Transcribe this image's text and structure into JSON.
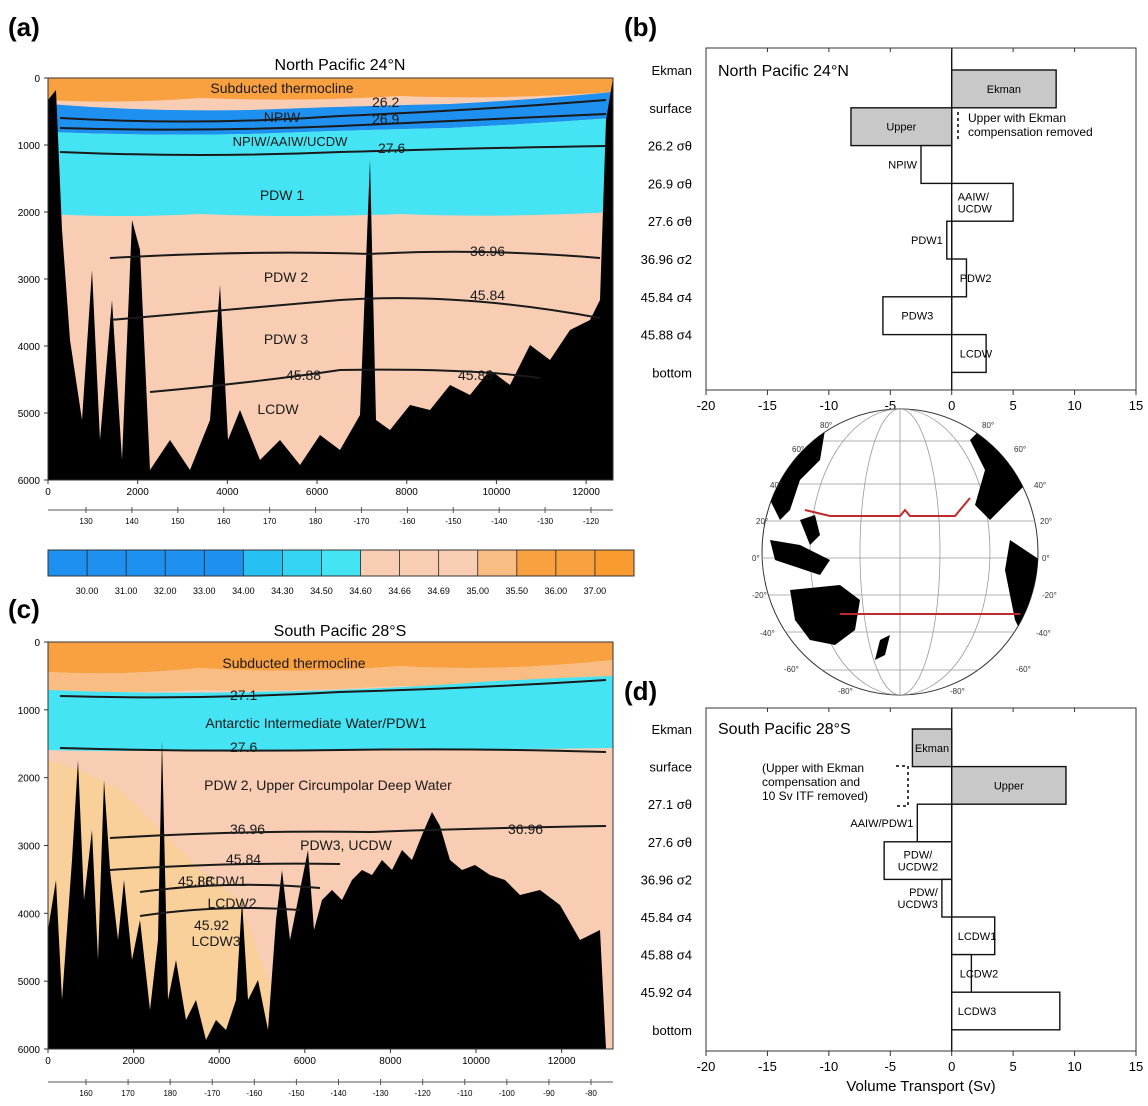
{
  "panels": {
    "a": {
      "label": "(a)",
      "title": "North Pacific 24°N",
      "y_ticks": [
        "0",
        "1000",
        "2000",
        "3000",
        "4000",
        "5000",
        "6000"
      ],
      "x_ticks": [
        "0",
        "2000",
        "4000",
        "6000",
        "8000",
        "10000",
        "12000"
      ],
      "lon_ticks": [
        "130",
        "140",
        "150",
        "160",
        "170",
        "180",
        "-170",
        "-160",
        "-150",
        "-140",
        "-130",
        "-120"
      ],
      "water_labels": [
        "Subducted thermocline",
        "NPIW",
        "NPIW/AAIW/UCDW",
        "PDW 1",
        "PDW 2",
        "PDW 3",
        "LCDW"
      ],
      "contour_labels": [
        "26.2",
        "26.9",
        "27.6",
        "36.96",
        "45.84",
        "45.88",
        "45.88"
      ]
    },
    "b": {
      "label": "(b)",
      "title": "North Pacific 24°N",
      "note": "Upper with Ekman compensation removed"
    },
    "c": {
      "label": "(c)",
      "title": "South Pacific 28°S",
      "y_ticks": [
        "0",
        "1000",
        "2000",
        "3000",
        "4000",
        "5000",
        "6000"
      ],
      "x_ticks": [
        "0",
        "2000",
        "4000",
        "6000",
        "8000",
        "10000",
        "12000"
      ],
      "lon_ticks": [
        "160",
        "170",
        "180",
        "-170",
        "-160",
        "-150",
        "-140",
        "-130",
        "-120",
        "-110",
        "-100",
        "-90",
        "-80"
      ],
      "water_labels": [
        "Subducted thermocline",
        "Antarctic Intermediate Water/PDW1",
        "PDW 2, Upper Circumpolar Deep Water",
        "PDW3, UCDW",
        "LCDW1",
        "LCDW2",
        "LCDW3"
      ],
      "contour_labels": [
        "27.1",
        "27.6",
        "36.96",
        "36.96",
        "45.84",
        "45.88",
        "45.92"
      ]
    },
    "d": {
      "label": "(d)",
      "title": "South Pacific 28°S",
      "note": "(Upper with Ekman compensation and 10 Sv ITF removed)"
    }
  },
  "colorbar": {
    "ticks": [
      "30.00",
      "31.00",
      "32.00",
      "33.00",
      "34.00",
      "34.30",
      "34.50",
      "34.60",
      "34.66",
      "34.69",
      "35.00",
      "35.50",
      "36.00",
      "37.00"
    ],
    "colors": [
      "#1e90f0",
      "#1e90f0",
      "#1e90f0",
      "#1e90f0",
      "#1e90f0",
      "#27c0f2",
      "#33d4f4",
      "#44e4f4",
      "#f8cdb4",
      "#f8cdb4",
      "#f8cdb4",
      "#f9bd84",
      "#f9a040",
      "#f9a040",
      "#f99b2e"
    ]
  },
  "map": {
    "lat_labels": [
      "80°",
      "60°",
      "40°",
      "20°",
      "0°",
      "-20°",
      "-40°",
      "-60°",
      "-80°"
    ]
  },
  "chart_data": [
    {
      "type": "bar",
      "panel": "b",
      "title": "North Pacific 24°N",
      "xlabel": "",
      "xlim": [
        -20,
        15
      ],
      "xticks": [
        -20,
        -15,
        -10,
        -5,
        0,
        5,
        10,
        15
      ],
      "levels": [
        "Ekman",
        "surface",
        "26.2 σθ",
        "26.9 σθ",
        "27.6 σθ",
        "36.96 σ2",
        "45.84 σ4",
        "45.88 σ4",
        "bottom"
      ],
      "bars": [
        {
          "label": "Ekman",
          "value": 8.5,
          "shaded": true
        },
        {
          "label": "Upper",
          "value": -8.2,
          "shaded": true
        },
        {
          "label": "NPIW",
          "value": -2.5,
          "shaded": false
        },
        {
          "label": "AAIW/\nUCDW",
          "value": 5.0,
          "shaded": false
        },
        {
          "label": "PDW1",
          "value": -0.4,
          "shaded": false
        },
        {
          "label": "PDW2",
          "value": 1.2,
          "shaded": false
        },
        {
          "label": "PDW3",
          "value": -5.6,
          "shaded": false
        },
        {
          "label": "LCDW",
          "value": 2.8,
          "shaded": false
        }
      ]
    },
    {
      "type": "bar",
      "panel": "d",
      "title": "South Pacific 28°S",
      "xlabel": "Volume Transport (Sv)",
      "xlim": [
        -20,
        15
      ],
      "xticks": [
        -20,
        -15,
        -10,
        -5,
        0,
        5,
        10,
        15
      ],
      "levels": [
        "Ekman",
        "surface",
        "27.1 σθ",
        "27.6 σθ",
        "36.96 σ2",
        "45.84 σ4",
        "45.88 σ4",
        "45.92 σ4",
        "bottom"
      ],
      "bars": [
        {
          "label": "Ekman",
          "value": -3.2,
          "shaded": true
        },
        {
          "label": "Upper",
          "value": 9.3,
          "shaded": true
        },
        {
          "label": "AAIW/PDW1",
          "value": -2.8,
          "shaded": false
        },
        {
          "label": "PDW/\nUCDW2",
          "value": -5.5,
          "shaded": false
        },
        {
          "label": "PDW/\nUCDW3",
          "value": -0.8,
          "shaded": false
        },
        {
          "label": "LCDW1",
          "value": 3.5,
          "shaded": false
        },
        {
          "label": "LCDW2",
          "value": 1.6,
          "shaded": false
        },
        {
          "label": "LCDW3",
          "value": 8.8,
          "shaded": false
        }
      ]
    }
  ]
}
